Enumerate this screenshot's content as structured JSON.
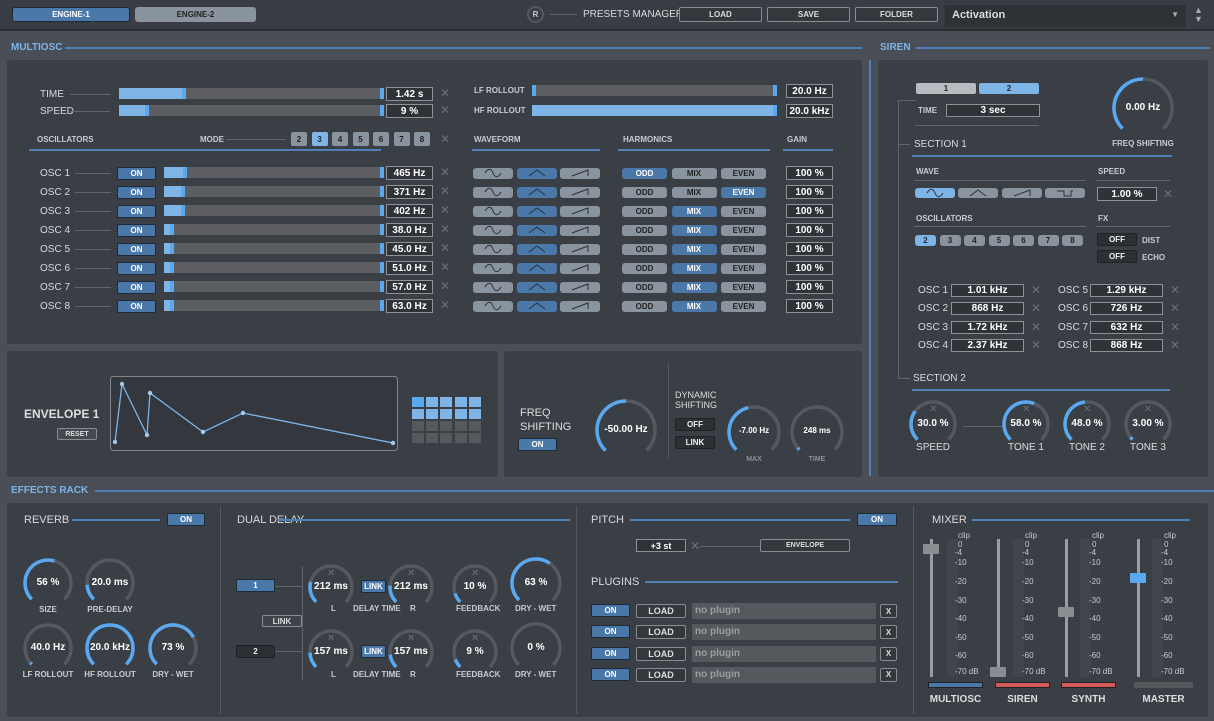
{
  "header": {
    "engines": [
      {
        "label": "ENGINE-1",
        "active": true
      },
      {
        "label": "ENGINE-2",
        "active": false
      }
    ],
    "reset_label": "R",
    "presets_title": "PRESETS MANAGER",
    "load": "LOAD",
    "save": "SAVE",
    "folder": "FOLDER",
    "preset_selected": "Activation"
  },
  "multiosc": {
    "title": "MULTIOSC",
    "time": {
      "label": "TIME",
      "value": "1.42 s",
      "level": 0.24
    },
    "speed": {
      "label": "SPEED",
      "value": "9 %",
      "level": 0.1
    },
    "lf_rollout": {
      "label": "LF ROLLOUT",
      "value": "20.0 Hz",
      "level": 0.0
    },
    "hf_rollout": {
      "label": "HF ROLLOUT",
      "value": "20.0 kHz",
      "level": 1.0
    },
    "oscillators_label": "OSCILLATORS",
    "mode_label": "MODE",
    "modes": [
      "2",
      "3",
      "4",
      "5",
      "6",
      "7",
      "8"
    ],
    "mode_selected": "3",
    "waveform_label": "WAVEFORM",
    "harmonics_label": "HARMONICS",
    "gain_label": "GAIN",
    "harmonic_options": [
      "ODD",
      "MIX",
      "EVEN"
    ],
    "on_label": "ON",
    "oscs": [
      {
        "name": "OSC 1",
        "freq": "465 Hz",
        "level": 0.09,
        "wave": "triangle",
        "harmonic": "ODD",
        "gain": "100 %"
      },
      {
        "name": "OSC 2",
        "freq": "371 Hz",
        "level": 0.08,
        "wave": "triangle",
        "harmonic": "EVEN",
        "gain": "100 %"
      },
      {
        "name": "OSC 3",
        "freq": "402 Hz",
        "level": 0.08,
        "wave": "triangle",
        "harmonic": "MIX",
        "gain": "100 %"
      },
      {
        "name": "OSC 4",
        "freq": "38.0 Hz",
        "level": 0.03,
        "wave": "triangle",
        "harmonic": "MIX",
        "gain": "100 %"
      },
      {
        "name": "OSC 5",
        "freq": "45.0 Hz",
        "level": 0.03,
        "wave": "triangle",
        "harmonic": "MIX",
        "gain": "100 %"
      },
      {
        "name": "OSC 6",
        "freq": "51.0 Hz",
        "level": 0.03,
        "wave": "triangle",
        "harmonic": "MIX",
        "gain": "100 %"
      },
      {
        "name": "OSC 7",
        "freq": "57.0 Hz",
        "level": 0.03,
        "wave": "triangle",
        "harmonic": "MIX",
        "gain": "100 %"
      },
      {
        "name": "OSC 8",
        "freq": "63.0 Hz",
        "level": 0.03,
        "wave": "triangle",
        "harmonic": "MIX",
        "gain": "100 %"
      }
    ]
  },
  "envelope": {
    "title": "ENVELOPE 1",
    "reset": "RESET"
  },
  "freq_shift": {
    "title1": "FREQ",
    "title2": "SHIFTING",
    "on": "ON",
    "knob": {
      "value": "-50.00 Hz",
      "level": 0.5
    },
    "dyn1": "DYNAMIC",
    "dyn2": "SHIFTING",
    "off": "OFF",
    "link": "LINK",
    "max": {
      "value": "-7.00 Hz",
      "label": "MAX",
      "level": 0.45
    },
    "time": {
      "value": "248 ms",
      "label": "TIME",
      "level": 0.02
    }
  },
  "siren": {
    "title": "SIREN",
    "tabs": [
      "1",
      "2"
    ],
    "tab_selected": "2",
    "time_label": "TIME",
    "time_value": "3 sec",
    "freq_shift": {
      "value": "0.00 Hz",
      "label": "FREQ SHIFTING",
      "level": 0.5
    },
    "section1": "SECTION 1",
    "wave_label": "WAVE",
    "speed_label": "SPEED",
    "speed_value": "1.00 %",
    "oscillators_label": "OSCILLATORS",
    "osc_counts": [
      "2",
      "3",
      "4",
      "5",
      "6",
      "7",
      "8"
    ],
    "osc_selected": "2",
    "fx_label": "FX",
    "fx": [
      {
        "state": "OFF",
        "label": "DIST"
      },
      {
        "state": "OFF",
        "label": "ECHO"
      }
    ],
    "oscs": [
      {
        "name": "OSC 1",
        "value": "1.01 kHz"
      },
      {
        "name": "OSC 2",
        "value": "868 Hz"
      },
      {
        "name": "OSC 3",
        "value": "1.72 kHz"
      },
      {
        "name": "OSC 4",
        "value": "2.37 kHz"
      },
      {
        "name": "OSC 5",
        "value": "1.29 kHz"
      },
      {
        "name": "OSC 6",
        "value": "726 Hz"
      },
      {
        "name": "OSC 7",
        "value": "632 Hz"
      },
      {
        "name": "OSC 8",
        "value": "868 Hz"
      }
    ],
    "section2": "SECTION 2",
    "knobs": [
      {
        "value": "30.0 %",
        "label": "SPEED",
        "level": 0.3
      },
      {
        "value": "58.0 %",
        "label": "TONE 1",
        "level": 0.58
      },
      {
        "value": "48.0 %",
        "label": "TONE 2",
        "level": 0.48
      },
      {
        "value": "3.00 %",
        "label": "TONE 3",
        "level": 0.03
      }
    ]
  },
  "effects": {
    "title": "EFFECTS RACK",
    "reverb": {
      "title": "REVERB",
      "on": "ON",
      "knobs": [
        {
          "value": "56 %",
          "label": "SIZE",
          "level": 0.56
        },
        {
          "value": "20.0 ms",
          "label": "PRE-DELAY",
          "level": 0.15
        },
        {
          "value": "40.0 Hz",
          "label": "LF ROLLOUT",
          "level": 0.02
        },
        {
          "value": "20.0 kHz",
          "label": "HF ROLLOUT",
          "level": 1.0
        },
        {
          "value": "73 %",
          "label": "DRY - WET",
          "level": 0.73
        }
      ]
    },
    "delay": {
      "title": "DUAL DELAY",
      "lines": [
        "1",
        "2"
      ],
      "link": "LINK",
      "delay_time": "DELAY TIME",
      "l": "L",
      "r": "R",
      "rows": [
        {
          "l": {
            "value": "212 ms",
            "level": 0.22
          },
          "r": {
            "value": "212 ms",
            "level": 0.18
          },
          "feedback": {
            "value": "10 %",
            "label": "FEEDBACK",
            "level": 0.1
          },
          "drywet": {
            "value": "63 %",
            "label": "DRY - WET",
            "level": 0.63
          }
        },
        {
          "l": {
            "value": "157 ms",
            "level": 0.16
          },
          "r": {
            "value": "157 ms",
            "level": 0.14
          },
          "feedback": {
            "value": "9 %",
            "label": "FEEDBACK",
            "level": 0.09
          },
          "drywet": {
            "value": "0 %",
            "label": "DRY - WET",
            "level": 0.0
          }
        }
      ]
    },
    "pitch": {
      "title": "PITCH",
      "on": "ON",
      "value": "+3 st",
      "envelope": "ENVELOPE"
    },
    "plugins": {
      "title": "PLUGINS",
      "rows": [
        {
          "on": "ON",
          "load": "LOAD",
          "name": "no plugin",
          "remove": "X"
        },
        {
          "on": "ON",
          "load": "LOAD",
          "name": "no plugin",
          "remove": "X"
        },
        {
          "on": "ON",
          "load": "LOAD",
          "name": "no plugin",
          "remove": "X"
        },
        {
          "on": "ON",
          "load": "LOAD",
          "name": "no plugin",
          "remove": "X"
        }
      ]
    },
    "mixer": {
      "title": "MIXER",
      "scale": [
        "clip",
        "0",
        "-4",
        "-10",
        "-20",
        "-30",
        "-40",
        "-50",
        "-60",
        "-70 dB"
      ],
      "channels": [
        {
          "name": "MULTIOSC",
          "fader_db": -2,
          "color": "#4a78a8"
        },
        {
          "name": "SIREN",
          "fader_db": -70,
          "color": "#d45a5a"
        },
        {
          "name": "SYNTH",
          "fader_db": -36,
          "color": "#d45a5a"
        },
        {
          "name": "MASTER",
          "fader_db": -18,
          "color": "#55585d",
          "selected": true
        }
      ]
    }
  },
  "colors": {
    "accent": "#5aa8f0",
    "button_blue": "#4a78a8",
    "panel": "#3a3e45",
    "background": "#4a4f57"
  }
}
